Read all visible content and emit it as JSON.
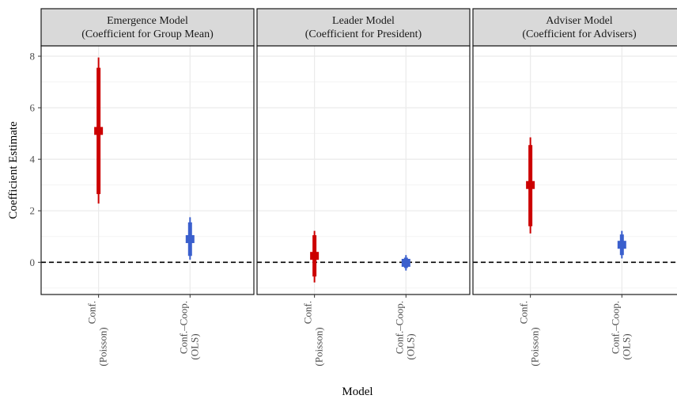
{
  "chart_data": {
    "type": "pointrange",
    "xlabel": "Model",
    "ylabel": "Coefficient Estimate",
    "ylim": [
      -1.25,
      8.4
    ],
    "yticks": [
      0,
      2,
      4,
      6,
      8
    ],
    "reference_line": 0,
    "categories": [
      {
        "line1": "Conf.",
        "line2": "(Poisson)"
      },
      {
        "line1": "Conf.–Coop.",
        "line2": "(OLS)"
      }
    ],
    "colors": {
      "conf": "#cc0000",
      "coop": "#3a5fcd"
    },
    "panels": [
      {
        "title_line1": "Emergence Model",
        "title_line2": "(Coefficient for Group Mean)",
        "points": [
          {
            "estimate": 5.1,
            "inner": [
              2.65,
              7.55
            ],
            "outer": [
              2.28,
              7.95
            ]
          },
          {
            "estimate": 0.9,
            "inner": [
              0.25,
              1.55
            ],
            "outer": [
              0.1,
              1.75
            ]
          }
        ]
      },
      {
        "title_line1": "Leader Model",
        "title_line2": "(Coefficient for President)",
        "points": [
          {
            "estimate": 0.25,
            "inner": [
              -0.55,
              1.05
            ],
            "outer": [
              -0.78,
              1.22
            ]
          },
          {
            "estimate": -0.02,
            "inner": [
              -0.22,
              0.18
            ],
            "outer": [
              -0.32,
              0.28
            ]
          }
        ]
      },
      {
        "title_line1": "Adviser Model",
        "title_line2": "(Coefficient for Advisers)",
        "points": [
          {
            "estimate": 3.0,
            "inner": [
              1.4,
              4.55
            ],
            "outer": [
              1.12,
              4.85
            ]
          },
          {
            "estimate": 0.68,
            "inner": [
              0.28,
              1.08
            ],
            "outer": [
              0.15,
              1.22
            ]
          }
        ]
      }
    ]
  }
}
